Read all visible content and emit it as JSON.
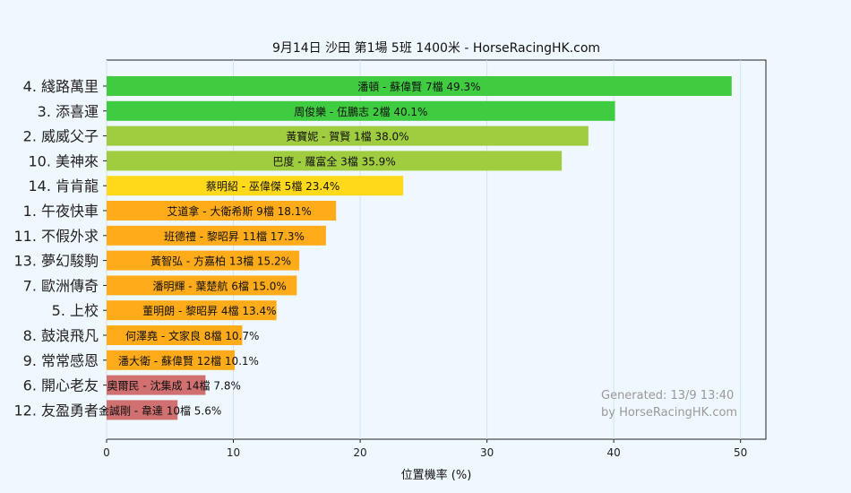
{
  "chart_data": {
    "type": "bar",
    "orientation": "horizontal",
    "title": "9月14日  沙田  第1場  5班  1400米 - HorseRacingHK.com",
    "xlabel": "位置機率 (%)",
    "xlim": [
      0,
      52
    ],
    "xticks": [
      0,
      10,
      20,
      30,
      40,
      50
    ],
    "grid": true,
    "categories": [
      "4. 綫路萬里",
      "3. 添喜運",
      "2. 威威父子",
      "10. 美神來",
      "14. 肯肯龍",
      "1. 午夜快車",
      "11. 不假外求",
      "13. 夢幻駿駒",
      "7. 歐洲傳奇",
      "5. 上校",
      "8. 鼓浪飛凡",
      "9. 常常感恩",
      "6. 開心老友",
      "12. 友盈勇者"
    ],
    "values": [
      49.3,
      40.1,
      38.0,
      35.9,
      23.4,
      18.1,
      17.3,
      15.2,
      15.0,
      13.4,
      10.7,
      10.1,
      7.8,
      5.6
    ],
    "bar_labels": [
      "潘頓 - 蘇偉賢 7檔  49.3%",
      "周俊樂 - 伍鵬志 2檔  40.1%",
      "黃寶妮 - 賀賢 1檔  38.0%",
      "巴度 - 羅富全 3檔  35.9%",
      "蔡明紹 - 巫偉傑 5檔  23.4%",
      "艾道拿 - 大衛希斯 9檔  18.1%",
      "班德禮 - 黎昭昇 11檔  17.3%",
      "黃智弘 - 方嘉柏 13檔  15.2%",
      "潘明輝 - 葉楚航 6檔  15.0%",
      "董明朗 - 黎昭昇 4檔  13.4%",
      "何澤堯 - 文家良 8檔  10.7%",
      "潘大衛 - 蘇偉賢 12檔  10.1%",
      "奧爾民 - 沈集成 14檔  7.8%",
      "金誠剛 - 韋達 10檔  5.6%"
    ],
    "colors": [
      "#40cc40",
      "#40cc40",
      "#a0cc40",
      "#a0cc40",
      "#ffd91a",
      "#ffab1a",
      "#ffab1a",
      "#ffab1a",
      "#ffab1a",
      "#ffab1a",
      "#ffab1a",
      "#ffab1a",
      "#d07070",
      "#d07070"
    ],
    "watermark": [
      "Generated: 13/9 13:40",
      "by HorseRacingHK.com"
    ]
  }
}
